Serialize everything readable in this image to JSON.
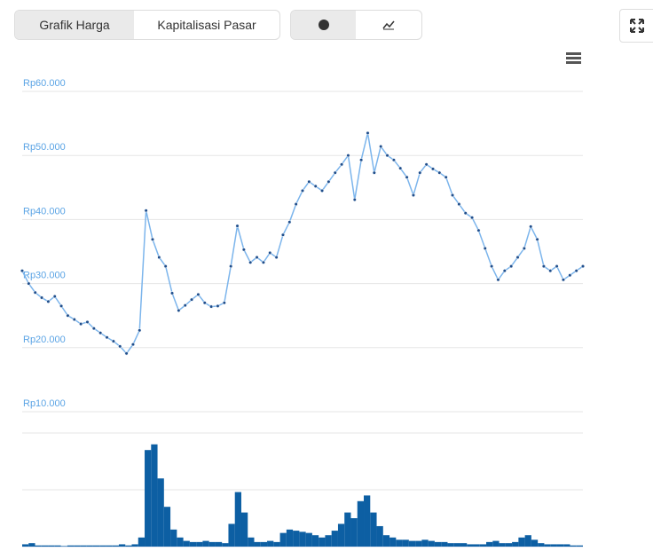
{
  "controls": {
    "tabs": [
      "Grafik Harga",
      "Kapitalisasi Pasar"
    ]
  },
  "chart_data": [
    {
      "type": "line",
      "color": "#7cb5ec",
      "marker_color": "#1f4e8c",
      "grid": true,
      "ylim": [
        10000,
        60000
      ],
      "yticks": [
        {
          "value": 10000,
          "label": "Rp10.000"
        },
        {
          "value": 20000,
          "label": "Rp20.000"
        },
        {
          "value": 30000,
          "label": "Rp30.000"
        },
        {
          "value": 40000,
          "label": "Rp40.000"
        },
        {
          "value": 50000,
          "label": "Rp50.000"
        },
        {
          "value": 60000,
          "label": "Rp60.000"
        }
      ],
      "values": [
        32000,
        30000,
        28600,
        27800,
        27200,
        28000,
        26500,
        25000,
        24400,
        23700,
        24000,
        23000,
        22300,
        21600,
        21000,
        20200,
        19100,
        20500,
        22700,
        41400,
        36900,
        34100,
        32700,
        28500,
        25800,
        26600,
        27500,
        28300,
        27000,
        26400,
        26500,
        27000,
        32700,
        39000,
        35300,
        33300,
        34100,
        33300,
        34800,
        34100,
        37600,
        39600,
        42400,
        44500,
        45900,
        45200,
        44500,
        45900,
        47300,
        48600,
        50000,
        43100,
        49300,
        53500,
        47300,
        51400,
        50000,
        49300,
        48000,
        46600,
        43800,
        47300,
        48600,
        47900,
        47300,
        46600,
        43800,
        42400,
        41000,
        40300,
        38300,
        35500,
        32700,
        30600,
        32000,
        32700,
        34100,
        35500,
        38900,
        36900,
        32700,
        32000,
        32700,
        30600,
        31300,
        32000,
        32700
      ]
    },
    {
      "type": "bar",
      "color": "#0d5fa3",
      "ylim": [
        0,
        100
      ],
      "values": [
        2,
        3,
        1,
        1,
        1,
        1,
        0.5,
        1,
        1,
        1,
        1,
        1,
        1,
        1,
        1,
        2,
        1,
        2,
        8,
        85,
        90,
        60,
        35,
        15,
        8,
        5,
        4,
        4,
        5,
        4,
        4,
        3,
        20,
        48,
        30,
        8,
        4,
        4,
        5,
        4,
        12,
        15,
        14,
        13,
        12,
        10,
        8,
        10,
        14,
        20,
        30,
        25,
        40,
        45,
        30,
        18,
        10,
        8,
        6,
        6,
        5,
        5,
        6,
        5,
        4,
        4,
        3,
        3,
        3,
        2,
        2,
        2,
        4,
        5,
        3,
        3,
        4,
        8,
        10,
        6,
        3,
        2,
        2,
        2,
        2,
        1,
        1
      ]
    }
  ]
}
